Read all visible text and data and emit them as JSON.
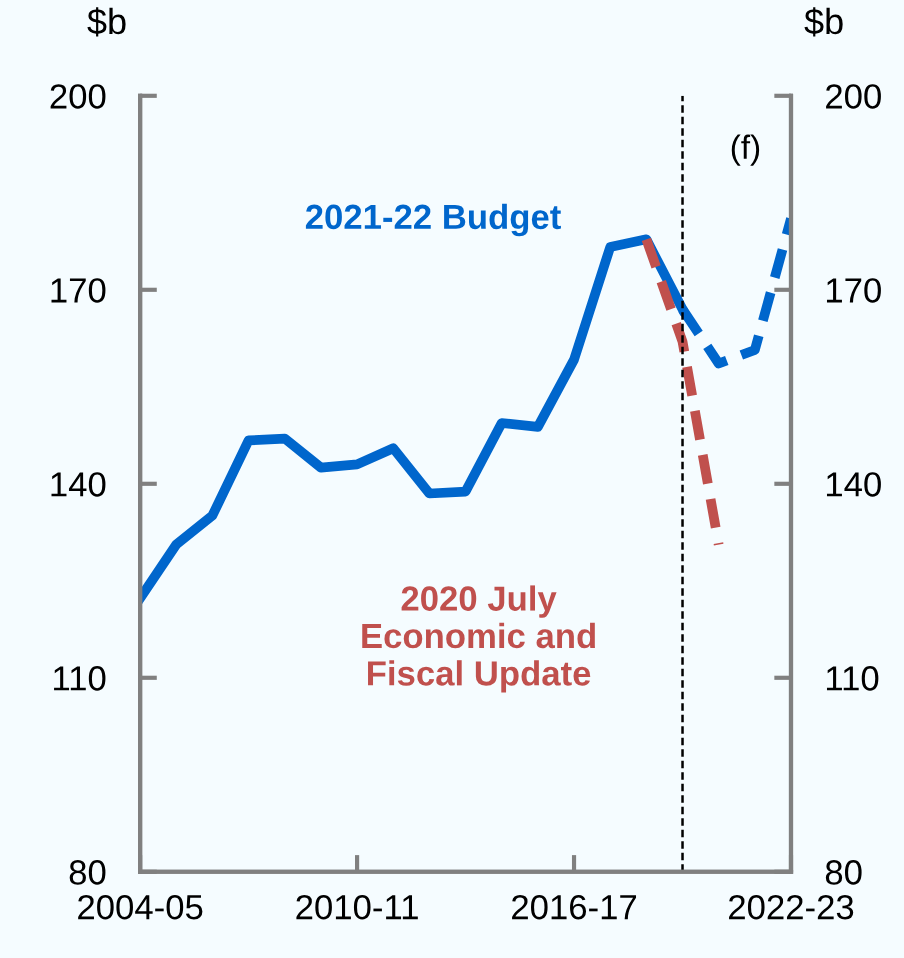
{
  "chart_data": {
    "type": "line",
    "categories": [
      "2004-05",
      null,
      null,
      null,
      null,
      null,
      "2010-11",
      null,
      null,
      null,
      null,
      null,
      "2016-17",
      null,
      null,
      null,
      null,
      null,
      "2022-23"
    ],
    "series": [
      {
        "name": "2021-22 Budget",
        "color": "#0066cc",
        "line_style": "solid",
        "values": [
          122.3,
          130.6,
          135.1,
          146.7,
          147,
          142.5,
          143,
          145.5,
          138.5,
          138.8,
          149.4,
          148.8,
          159.2,
          176.6,
          177.8,
          167,
          null,
          null,
          null
        ]
      },
      {
        "color": "#0066cc",
        "line_style": "dashed",
        "values": [
          null,
          null,
          null,
          null,
          null,
          null,
          null,
          null,
          null,
          null,
          null,
          null,
          null,
          null,
          null,
          167,
          158.6,
          160.7,
          181
        ]
      },
      {
        "name": "2020 July Economic and Fiscal Update",
        "color": "#c0504d",
        "line_style": "dashed",
        "values": [
          null,
          null,
          null,
          null,
          null,
          null,
          null,
          null,
          null,
          null,
          null,
          null,
          null,
          null,
          177.8,
          162,
          130.6,
          null,
          null
        ]
      }
    ],
    "ylim": [
      80,
      200
    ],
    "yticks": [
      80,
      110,
      140,
      170,
      200
    ],
    "y2lim": [
      80,
      200
    ],
    "y2ticks": [
      80,
      110,
      140,
      170,
      200
    ],
    "ylabel": "$b",
    "y2label": "$b",
    "annotations": [
      "(f)"
    ],
    "legend": false
  }
}
